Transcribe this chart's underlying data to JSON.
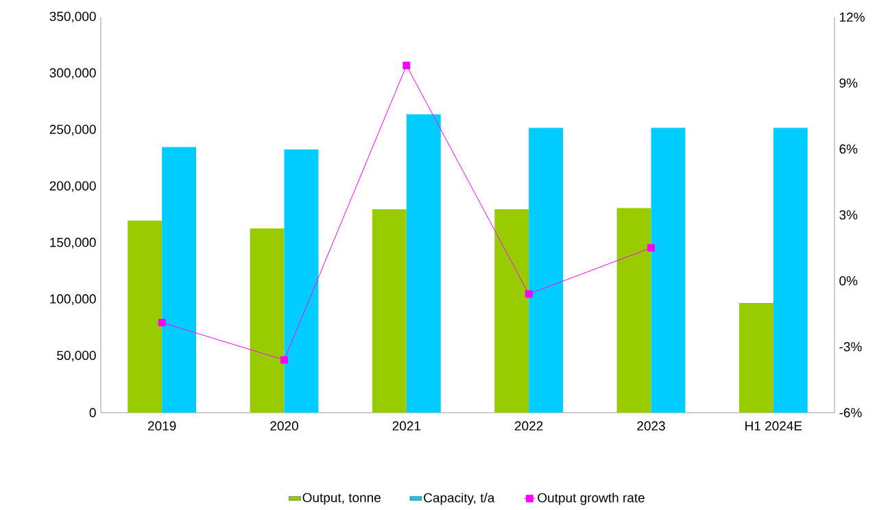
{
  "chart_data": {
    "type": "bar",
    "categories": [
      "2019",
      "2020",
      "2021",
      "2022",
      "2023",
      "H1 2024E"
    ],
    "series": [
      {
        "name": "Output, tonne",
        "color": "#99cc00",
        "values": [
          170000,
          163000,
          180000,
          180000,
          181000,
          97000
        ]
      },
      {
        "name": "Capacity, t/a",
        "color": "#00ccff",
        "values": [
          235000,
          233000,
          264000,
          252000,
          252000,
          252000
        ]
      },
      {
        "name": "Output growth rate",
        "type": "line",
        "axis": "y2",
        "color": "#ff00ff",
        "marker": "square",
        "values": [
          -1.9,
          -3.6,
          9.8,
          -0.6,
          1.5,
          null
        ]
      }
    ],
    "ylim": [
      0,
      350000
    ],
    "yticks": [
      0,
      {
        "value": 50000,
        "label": "50,000"
      },
      {
        "value": 100000,
        "label": "100,000"
      },
      {
        "value": 150000,
        "label": "150,000"
      },
      {
        "value": 200000,
        "label": "200,000"
      },
      {
        "value": 250000,
        "label": "250,000"
      },
      {
        "value": 300000,
        "label": "300,000"
      },
      {
        "value": 350000,
        "label": "350,000"
      }
    ],
    "y2lim": [
      -6,
      12
    ],
    "y2ticks": [
      {
        "value": -6,
        "label": "-6%"
      },
      {
        "value": -3,
        "label": "-3%"
      },
      {
        "value": 0,
        "label": "0%"
      },
      {
        "value": 3,
        "label": "3%"
      },
      {
        "value": 6,
        "label": "6%"
      },
      {
        "value": 9,
        "label": "9%"
      },
      {
        "value": 12,
        "label": "12%"
      }
    ],
    "legend": "bottom",
    "grid": false
  }
}
